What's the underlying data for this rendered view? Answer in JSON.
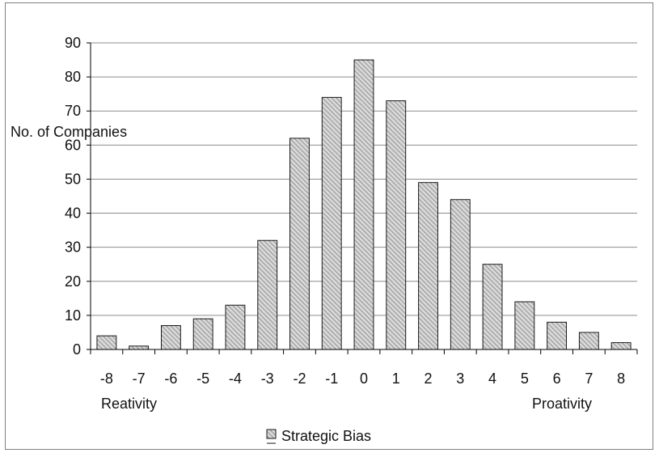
{
  "chart_data": {
    "type": "bar",
    "categories": [
      "-8",
      "-7",
      "-6",
      "-5",
      "-4",
      "-3",
      "-2",
      "-1",
      "0",
      "1",
      "2",
      "3",
      "4",
      "5",
      "6",
      "7",
      "8"
    ],
    "series": [
      {
        "name": "Strategic Bias",
        "values": [
          4,
          1,
          7,
          9,
          13,
          32,
          62,
          74,
          85,
          73,
          49,
          44,
          25,
          14,
          8,
          5,
          2
        ]
      }
    ],
    "ylabel": "No. of Companies",
    "ylim": [
      0,
      90
    ],
    "yticks": [
      0,
      10,
      20,
      30,
      40,
      50,
      60,
      70,
      80,
      90
    ],
    "annotations": {
      "left": "Reativity",
      "right": "Proativity"
    },
    "legend": {
      "position": "bottom-center",
      "label": "Strategic Bias"
    },
    "grid": true,
    "colors": {
      "bar_fill": "#d6d6d6",
      "bar_hatch": "#7a7a7a",
      "bar_edge": "#1a1a1a",
      "grid": "#8c8c8c",
      "axis": "#000000"
    }
  }
}
